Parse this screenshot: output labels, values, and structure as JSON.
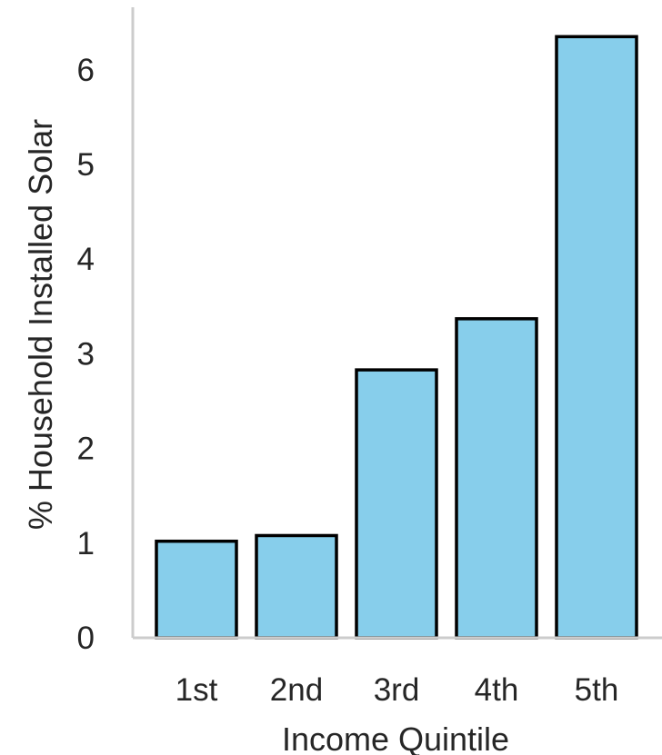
{
  "chart_data": {
    "type": "bar",
    "categories": [
      "1st",
      "2nd",
      "3rd",
      "4th",
      "5th"
    ],
    "values": [
      1.02,
      1.08,
      2.83,
      3.37,
      6.35
    ],
    "title": "",
    "xlabel": "Income Quintile",
    "ylabel": "% Household Installed Solar",
    "ylim": [
      0,
      6.6
    ],
    "yticks": [
      "0",
      "1",
      "2",
      "3",
      "4",
      "5",
      "6"
    ],
    "grid": false,
    "colors": {
      "bar_fill": "#87ceeb",
      "bar_edge": "#000000",
      "axis": "#cccccc",
      "text": "#262626"
    }
  }
}
